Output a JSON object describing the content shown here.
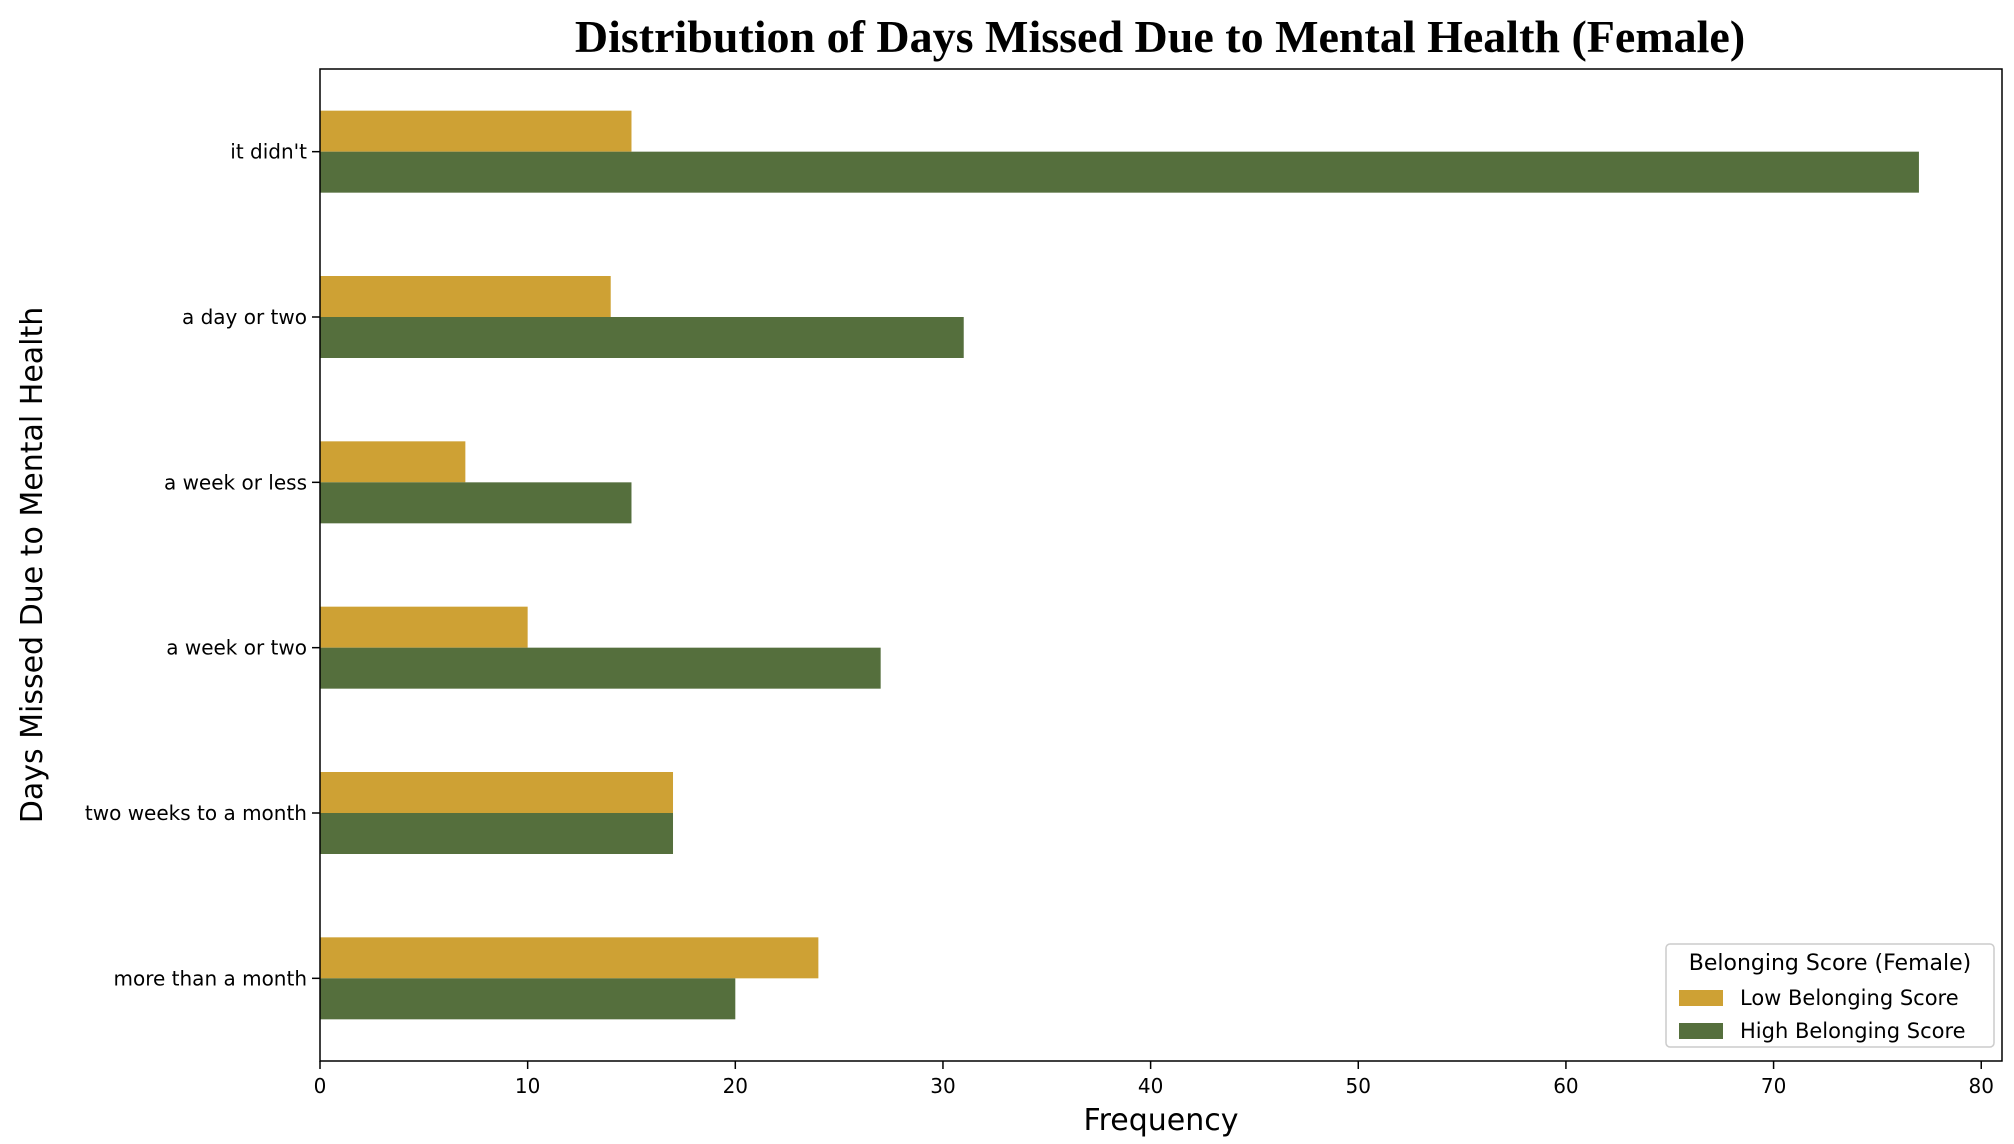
{
  "chart_data": {
    "type": "bar",
    "orientation": "horizontal",
    "title": "Distribution of Days Missed Due to Mental Health (Female)",
    "xlabel": "Frequency",
    "ylabel": "Days Missed Due to Mental Health",
    "xlim": [
      0,
      81
    ],
    "xticks": [
      0,
      10,
      20,
      30,
      40,
      50,
      60,
      70,
      80
    ],
    "grid": false,
    "categories": [
      "it didn't",
      "a day or two",
      "a week or less",
      "a week or two",
      "two weeks to a month",
      "more than a month"
    ],
    "series": [
      {
        "name": "Low Belonging Score",
        "color": "#cea134",
        "values": [
          15,
          14,
          7,
          10,
          17,
          24
        ]
      },
      {
        "name": "High Belonging Score",
        "color": "#556f3d",
        "values": [
          77,
          31,
          15,
          27,
          17,
          20
        ]
      }
    ],
    "legend": {
      "title": "Belonging Score (Female)",
      "placement": "lower-right"
    }
  }
}
